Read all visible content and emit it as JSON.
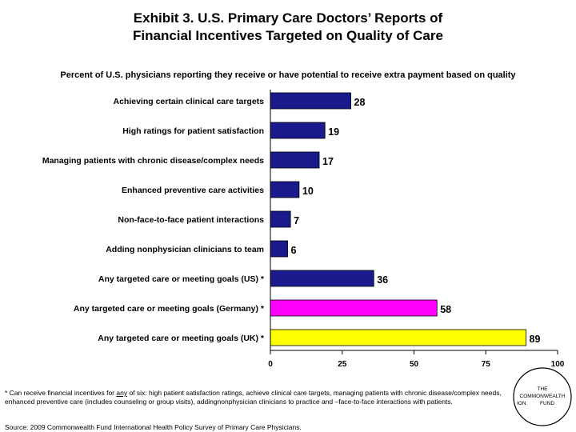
{
  "title_line1": "Exhibit 3. U.S. Primary Care Doctors’ Reports of",
  "title_line2": "Financial Incentives Targeted on Quality of Care",
  "subtitle": "Percent of U.S. physicians reporting they receive or have potential to receive extra payment based on quality",
  "chart_data": {
    "type": "bar",
    "orientation": "horizontal",
    "title": "Percent of U.S. physicians reporting they receive or have potential to receive extra payment based on quality",
    "categories": [
      "Achieving certain clinical care targets",
      "High ratings for patient satisfaction",
      "Managing patients with chronic disease/complex needs",
      "Enhanced preventive care activities",
      "Non-face-to-face patient interactions",
      "Adding nonphysician clinicians to team",
      "Any targeted care or meeting goals (US) *",
      "Any targeted care or meeting goals (Germany) *",
      "Any targeted care or meeting goals (UK) *"
    ],
    "values": [
      28,
      19,
      17,
      10,
      7,
      6,
      36,
      58,
      89
    ],
    "colors": [
      "#1a1a8c",
      "#1a1a8c",
      "#1a1a8c",
      "#1a1a8c",
      "#1a1a8c",
      "#1a1a8c",
      "#1a1a8c",
      "#ff00ff",
      "#ffff00"
    ],
    "xlim": [
      0,
      100
    ],
    "xticks": [
      0,
      25,
      50,
      75,
      100
    ],
    "xlabel": "",
    "ylabel": "",
    "grid": false
  },
  "footnote": {
    "prefix": "* Can receive financial incentives for ",
    "underlined": "any",
    "rest": " of six: high patient satisfaction ratings, achieve clinical care targets, managing patients with chronic disease/complex needs, enhanced preventive care (includes counseling or group visits), addingnonphysician clinicians to practice and –face-to-face interactions with patients."
  },
  "source": "Source: 2009 Commonwealth Fund International Health Policy Survey of Primary Care Physicians.",
  "logo": {
    "line1": "THE",
    "line2": "COMMONWEALTH",
    "line3": "FUND",
    "partial": "ION"
  }
}
